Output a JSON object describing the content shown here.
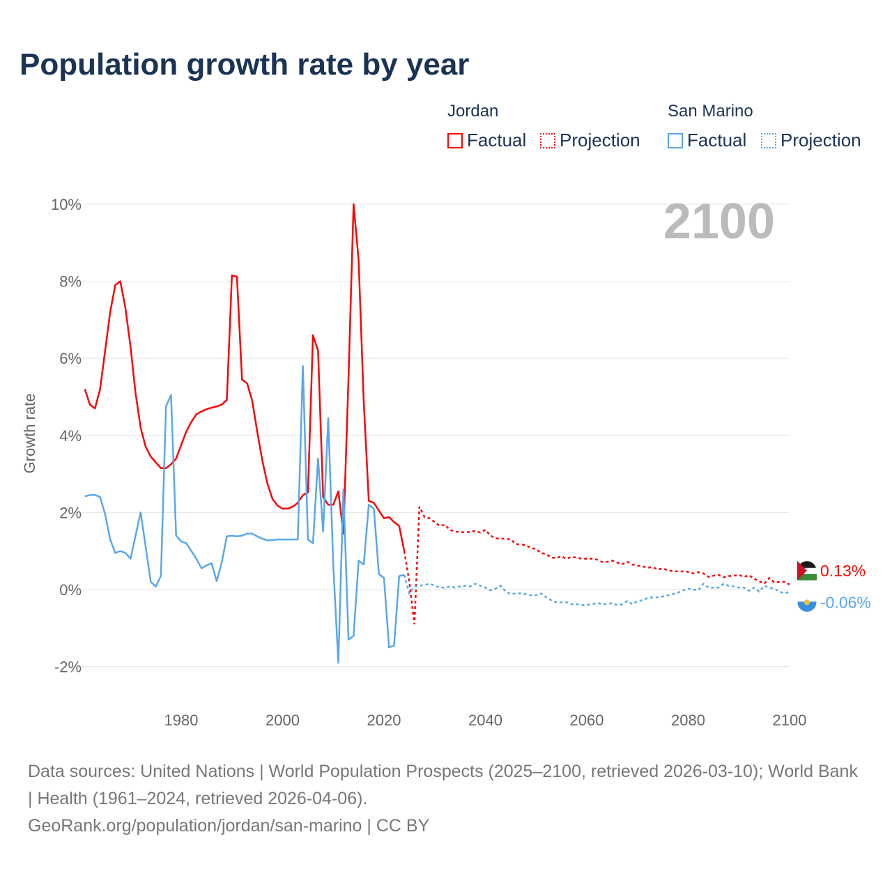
{
  "title": "Population growth rate by year",
  "legend": {
    "jordan": {
      "name": "Jordan",
      "factual": "Factual",
      "projection": "Projection",
      "color": "#ff0000"
    },
    "san_marino": {
      "name": "San Marino",
      "factual": "Factual",
      "projection": "Projection",
      "color": "#5aa7ec"
    }
  },
  "footer": {
    "line1": "Data sources: United Nations | World Population Prospects (2025–2100, retrieved 2026-03-10); World Bank | Health (1961–2024, retrieved 2026-04-06).",
    "line2": "GeoRank.org/population/jordan/san-marino | CC BY"
  },
  "chart_data": {
    "type": "line",
    "title": "Population growth rate by year",
    "ylabel": "Growth rate",
    "xlabel": "",
    "year_label": "2100",
    "xlim": [
      1961,
      2100
    ],
    "ylim": [
      -2,
      10
    ],
    "xticks": [
      1980,
      2000,
      2020,
      2040,
      2060,
      2080,
      2100
    ],
    "yticks": [
      {
        "v": -2,
        "label": "-2%"
      },
      {
        "v": 0,
        "label": "0%"
      },
      {
        "v": 2,
        "label": "2%"
      },
      {
        "v": 4,
        "label": "4%"
      },
      {
        "v": 6,
        "label": "6%"
      },
      {
        "v": 8,
        "label": "8%"
      },
      {
        "v": 10,
        "label": "10%"
      }
    ],
    "series": [
      {
        "name": "Jordan",
        "color": "#ff0000",
        "end_label": "0.13%",
        "factual_start": 1961,
        "factual": [
          5.2,
          4.8,
          4.7,
          5.2,
          6.2,
          7.2,
          7.9,
          8.0,
          7.3,
          6.3,
          5.1,
          4.2,
          3.7,
          3.45,
          3.3,
          3.15,
          3.15,
          3.25,
          3.4,
          3.75,
          4.1,
          4.35,
          4.55,
          4.62,
          4.68,
          4.72,
          4.75,
          4.8,
          4.92,
          8.15,
          8.12,
          5.45,
          5.35,
          4.9,
          4.1,
          3.35,
          2.75,
          2.35,
          2.18,
          2.1,
          2.1,
          2.15,
          2.25,
          2.45,
          2.52,
          6.6,
          6.2,
          2.4,
          2.2,
          2.2,
          2.55,
          1.45,
          5.5,
          10.0,
          8.55,
          4.9,
          2.3,
          2.25,
          2.05,
          1.85,
          1.88,
          1.75,
          1.65,
          1.0
        ],
        "projection_start": 2025,
        "projection": [
          0.2,
          -0.9,
          2.15,
          1.88,
          1.85,
          1.75,
          1.65,
          1.68,
          1.55,
          1.5,
          1.5,
          1.48,
          1.5,
          1.52,
          1.48,
          1.55,
          1.4,
          1.33,
          1.32,
          1.32,
          1.3,
          1.18,
          1.17,
          1.15,
          1.08,
          1.05,
          0.95,
          0.92,
          0.83,
          0.82,
          0.86,
          0.8,
          0.85,
          0.83,
          0.8,
          0.8,
          0.8,
          0.78,
          0.72,
          0.72,
          0.75,
          0.7,
          0.66,
          0.72,
          0.65,
          0.62,
          0.6,
          0.57,
          0.58,
          0.52,
          0.55,
          0.5,
          0.48,
          0.47,
          0.47,
          0.46,
          0.42,
          0.45,
          0.42,
          0.33,
          0.36,
          0.38,
          0.32,
          0.35,
          0.36,
          0.38,
          0.33,
          0.37,
          0.28,
          0.22,
          0.15,
          0.3,
          0.18,
          0.2,
          0.2,
          0.13
        ]
      },
      {
        "name": "San Marino",
        "color": "#5aa7ec",
        "end_label": "-0.06%",
        "factual_start": 1961,
        "factual": [
          2.42,
          2.45,
          2.46,
          2.4,
          1.95,
          1.3,
          0.95,
          1.0,
          0.95,
          0.8,
          1.4,
          2.0,
          1.1,
          0.2,
          0.08,
          0.35,
          4.75,
          5.05,
          1.4,
          1.25,
          1.2,
          1.0,
          0.8,
          0.55,
          0.63,
          0.68,
          0.22,
          0.7,
          1.38,
          1.4,
          1.38,
          1.4,
          1.45,
          1.45,
          1.38,
          1.32,
          1.28,
          1.28,
          1.3,
          1.3,
          1.3,
          1.3,
          1.3,
          5.8,
          1.3,
          1.2,
          3.4,
          1.5,
          4.45,
          0.6,
          -1.9,
          2.6,
          -1.3,
          -1.2,
          0.75,
          0.65,
          2.2,
          2.1,
          0.4,
          0.3,
          -1.5,
          -1.45,
          0.35,
          0.38
        ],
        "projection_start": 2025,
        "projection": [
          -0.1,
          0.08,
          0.1,
          0.12,
          0.15,
          0.1,
          0.05,
          0.05,
          0.08,
          0.05,
          0.08,
          0.1,
          0.08,
          0.15,
          0.1,
          0.05,
          -0.02,
          0.02,
          0.1,
          -0.05,
          -0.12,
          -0.1,
          -0.1,
          -0.12,
          -0.15,
          -0.15,
          -0.1,
          -0.2,
          -0.28,
          -0.33,
          -0.33,
          -0.33,
          -0.38,
          -0.38,
          -0.4,
          -0.4,
          -0.38,
          -0.35,
          -0.37,
          -0.38,
          -0.35,
          -0.4,
          -0.38,
          -0.3,
          -0.38,
          -0.3,
          -0.28,
          -0.22,
          -0.2,
          -0.2,
          -0.18,
          -0.15,
          -0.12,
          -0.08,
          -0.02,
          0.02,
          0.0,
          -0.02,
          0.15,
          0.05,
          0.05,
          0.05,
          0.15,
          0.1,
          0.08,
          0.05,
          0.05,
          -0.03,
          0.05,
          -0.05,
          0.1,
          0.05,
          0.02,
          -0.05,
          -0.1,
          -0.06
        ]
      }
    ]
  }
}
